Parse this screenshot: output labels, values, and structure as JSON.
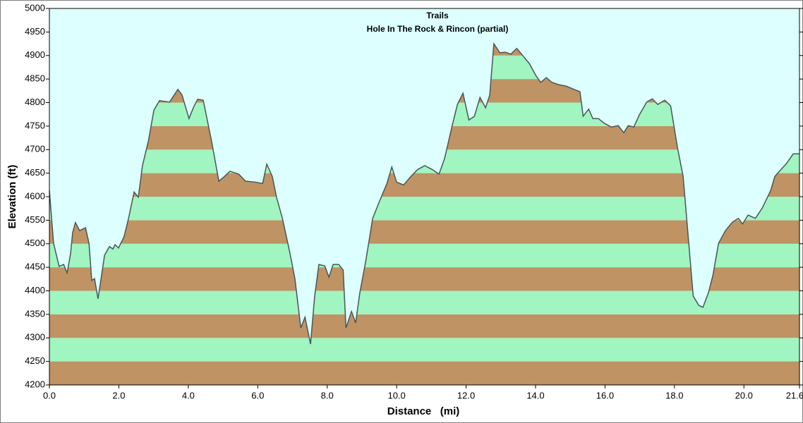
{
  "chart_data": {
    "type": "area",
    "title": "Trails",
    "subtitle": "Hole In The Rock & Rincon (partial)",
    "x_label": "Distance   (mi)",
    "y_label": "Elevation (ft)",
    "background": "#ddffff",
    "line_color": "#4a5656",
    "band_colors": [
      "#bf9364",
      "#a0f5c0"
    ],
    "xlim": [
      0,
      21.6
    ],
    "ylim": [
      4200,
      5000
    ],
    "xticks": [
      {
        "value": 0,
        "label": "0.0"
      },
      {
        "value": 2,
        "label": "2.0"
      },
      {
        "value": 4,
        "label": "4.0"
      },
      {
        "value": 6,
        "label": "6.0"
      },
      {
        "value": 8,
        "label": "8.0"
      },
      {
        "value": 10,
        "label": "10.0"
      },
      {
        "value": 12,
        "label": "12.0"
      },
      {
        "value": 14,
        "label": "14.0"
      },
      {
        "value": 16,
        "label": "16.0"
      },
      {
        "value": 18,
        "label": "18.0"
      },
      {
        "value": 20,
        "label": "20.0"
      },
      {
        "value": 21.6,
        "label": "21.6"
      }
    ],
    "yticks": [
      4200,
      4250,
      4300,
      4350,
      4400,
      4450,
      4500,
      4550,
      4600,
      4650,
      4700,
      4750,
      4800,
      4850,
      4900,
      4950,
      5000
    ],
    "x": [
      0,
      0.12,
      0.28,
      0.41,
      0.51,
      0.61,
      0.67,
      0.75,
      0.87,
      1.04,
      1.14,
      1.22,
      1.3,
      1.4,
      1.59,
      1.73,
      1.83,
      1.89,
      1.99,
      2.15,
      2.28,
      2.44,
      2.56,
      2.68,
      2.85,
      3.01,
      3.17,
      3.46,
      3.7,
      3.82,
      4.02,
      4.15,
      4.27,
      4.43,
      4.67,
      4.88,
      5.04,
      5.2,
      5.45,
      5.65,
      5.93,
      6.14,
      6.26,
      6.42,
      6.54,
      6.71,
      6.91,
      7.07,
      7.24,
      7.36,
      7.52,
      7.64,
      7.76,
      7.93,
      8.05,
      8.17,
      8.33,
      8.46,
      8.54,
      8.7,
      8.82,
      8.94,
      9.11,
      9.31,
      9.51,
      9.72,
      9.86,
      10.0,
      10.2,
      10.41,
      10.61,
      10.81,
      11.02,
      11.22,
      11.38,
      11.59,
      11.75,
      11.91,
      12.08,
      12.24,
      12.4,
      12.56,
      12.68,
      12.8,
      12.97,
      13.13,
      13.29,
      13.46,
      13.62,
      13.82,
      14.02,
      14.15,
      14.31,
      14.47,
      14.67,
      14.88,
      15.08,
      15.28,
      15.37,
      15.53,
      15.65,
      15.81,
      15.98,
      16.18,
      16.38,
      16.54,
      16.67,
      16.83,
      16.99,
      17.2,
      17.36,
      17.52,
      17.72,
      17.89,
      18.09,
      18.25,
      18.42,
      18.54,
      18.7,
      18.82,
      18.98,
      19.11,
      19.27,
      19.47,
      19.67,
      19.84,
      19.96,
      20.12,
      20.33,
      20.53,
      20.77,
      20.89,
      21.02,
      21.22,
      21.42,
      21.6
    ],
    "y": [
      4613,
      4501,
      4452,
      4456,
      4438,
      4479,
      4524,
      4545,
      4528,
      4534,
      4501,
      4422,
      4426,
      4383,
      4476,
      4494,
      4489,
      4498,
      4491,
      4515,
      4554,
      4610,
      4599,
      4666,
      4718,
      4784,
      4804,
      4801,
      4828,
      4816,
      4766,
      4790,
      4807,
      4805,
      4718,
      4633,
      4643,
      4654,
      4648,
      4633,
      4631,
      4628,
      4669,
      4643,
      4599,
      4554,
      4486,
      4426,
      4321,
      4344,
      4287,
      4389,
      4456,
      4453,
      4429,
      4456,
      4456,
      4444,
      4321,
      4356,
      4332,
      4396,
      4463,
      4554,
      4591,
      4628,
      4663,
      4631,
      4625,
      4643,
      4658,
      4666,
      4658,
      4648,
      4681,
      4748,
      4796,
      4820,
      4763,
      4771,
      4811,
      4789,
      4816,
      4925,
      4906,
      4907,
      4903,
      4915,
      4901,
      4883,
      4856,
      4843,
      4853,
      4843,
      4838,
      4835,
      4829,
      4823,
      4771,
      4786,
      4766,
      4766,
      4756,
      4748,
      4751,
      4736,
      4751,
      4748,
      4774,
      4801,
      4808,
      4796,
      4805,
      4793,
      4703,
      4643,
      4494,
      4389,
      4369,
      4365,
      4396,
      4434,
      4501,
      4528,
      4546,
      4554,
      4542,
      4561,
      4554,
      4576,
      4613,
      4643,
      4654,
      4670,
      4691,
      4691
    ]
  }
}
